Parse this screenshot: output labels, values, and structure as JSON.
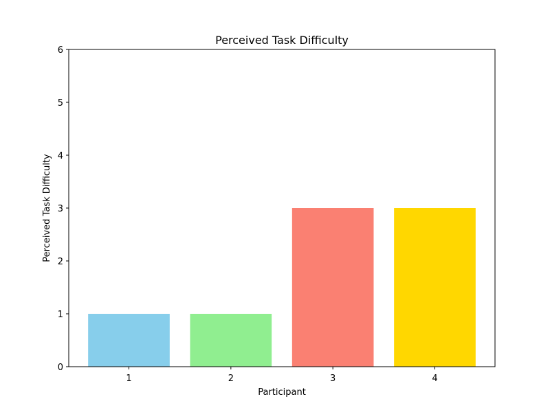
{
  "chart_data": {
    "type": "bar",
    "title": "Perceived Task Difficulty",
    "xlabel": "Participant",
    "ylabel": "Perceived Task Difficulty",
    "categories": [
      "1",
      "2",
      "3",
      "4"
    ],
    "values": [
      1,
      1,
      3,
      3
    ],
    "colors": [
      "#87CEEB",
      "#90EE90",
      "#FA8072",
      "#FFD700"
    ],
    "ylim": [
      0,
      6
    ],
    "yticks": [
      0,
      1,
      2,
      3,
      4,
      5,
      6
    ],
    "grid": false,
    "legend": "none"
  }
}
